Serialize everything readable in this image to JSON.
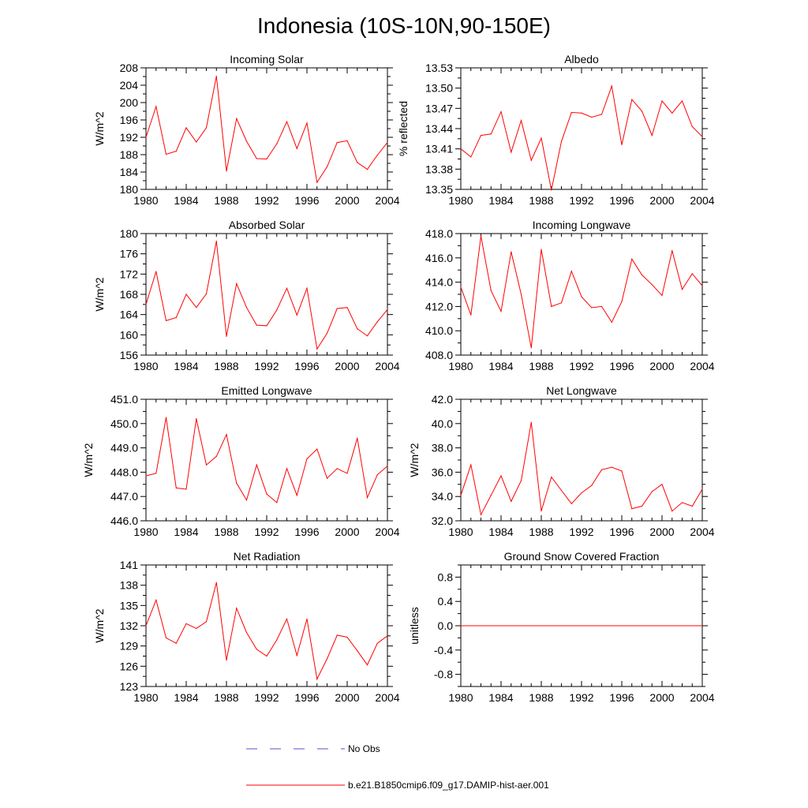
{
  "title": "Indonesia (10S-10N,90-150E)",
  "series_color": "#ff0000",
  "obs_color": "#4f4fd0",
  "legend": {
    "obs_label": "No Obs",
    "model_label": "b.e21.B1850cmip6.f09_g17.DAMIP-hist-aer.001"
  },
  "chart_data": [
    {
      "type": "line",
      "title": "Incoming Solar",
      "ylabel": "W/m^2",
      "xlim": [
        1980,
        2004
      ],
      "ylim": [
        180,
        208
      ],
      "xticks": [
        "1980",
        "1984",
        "1988",
        "1992",
        "1996",
        "2000",
        "2004"
      ],
      "yticks": [
        "180",
        "184",
        "188",
        "192",
        "196",
        "200",
        "204",
        "208"
      ],
      "x": [
        1980,
        1981,
        1982,
        1983,
        1984,
        1985,
        1986,
        1987,
        1988,
        1989,
        1990,
        1991,
        1992,
        1993,
        1994,
        1995,
        1996,
        1997,
        1998,
        1999,
        2000,
        2001,
        2002,
        2003,
        2004
      ],
      "values": [
        192.0,
        199.1,
        188.1,
        188.8,
        194.2,
        190.9,
        194.2,
        206.1,
        184.2,
        196.3,
        191.1,
        187.1,
        187.0,
        190.5,
        195.6,
        189.4,
        195.3,
        181.6,
        185.2,
        190.8,
        191.2,
        186.2,
        184.6,
        187.9,
        190.8
      ]
    },
    {
      "type": "line",
      "title": "Albedo",
      "ylabel": "% reflected",
      "xlim": [
        1980,
        2004
      ],
      "ylim": [
        13.35,
        13.53
      ],
      "xticks": [
        "1980",
        "1984",
        "1988",
        "1992",
        "1996",
        "2000",
        "2004"
      ],
      "yticks": [
        "13.35",
        "13.38",
        "13.41",
        "13.44",
        "13.47",
        "13.50",
        "13.53"
      ],
      "x": [
        1980,
        1981,
        1982,
        1983,
        1984,
        1985,
        1986,
        1987,
        1988,
        1989,
        1990,
        1991,
        1992,
        1993,
        1994,
        1995,
        1996,
        1997,
        1998,
        1999,
        2000,
        2001,
        2002,
        2003,
        2004
      ],
      "values": [
        13.41,
        13.398,
        13.43,
        13.432,
        13.465,
        13.405,
        13.452,
        13.393,
        13.426,
        13.349,
        13.421,
        13.464,
        13.463,
        13.457,
        13.461,
        13.503,
        13.416,
        13.483,
        13.466,
        13.43,
        13.481,
        13.463,
        13.481,
        13.443,
        13.428
      ]
    },
    {
      "type": "line",
      "title": "Absorbed Solar",
      "ylabel": "W/m^2",
      "xlim": [
        1980,
        2004
      ],
      "ylim": [
        156,
        180
      ],
      "xticks": [
        "1980",
        "1984",
        "1988",
        "1992",
        "1996",
        "2000",
        "2004"
      ],
      "yticks": [
        "156",
        "160",
        "164",
        "168",
        "172",
        "176",
        "180"
      ],
      "x": [
        1980,
        1981,
        1982,
        1983,
        1984,
        1985,
        1986,
        1987,
        1988,
        1989,
        1990,
        1991,
        1992,
        1993,
        1994,
        1995,
        1996,
        1997,
        1998,
        1999,
        2000,
        2001,
        2002,
        2003,
        2004
      ],
      "values": [
        166.0,
        172.5,
        162.8,
        163.4,
        168.0,
        165.4,
        168.1,
        178.5,
        159.7,
        170.1,
        165.4,
        161.9,
        161.8,
        164.9,
        169.2,
        163.9,
        169.2,
        157.2,
        160.3,
        165.2,
        165.4,
        161.2,
        159.8,
        162.6,
        165.0
      ]
    },
    {
      "type": "line",
      "title": "Incoming Longwave",
      "ylabel": "",
      "xlim": [
        1980,
        2004
      ],
      "ylim": [
        408.0,
        418.0
      ],
      "xticks": [
        "1980",
        "1984",
        "1988",
        "1992",
        "1996",
        "2000",
        "2004"
      ],
      "yticks": [
        "408.0",
        "410.0",
        "412.0",
        "414.0",
        "416.0",
        "418.0"
      ],
      "x": [
        1980,
        1981,
        1982,
        1983,
        1984,
        1985,
        1986,
        1987,
        1988,
        1989,
        1990,
        1991,
        1992,
        1993,
        1994,
        1995,
        1996,
        1997,
        1998,
        1999,
        2000,
        2001,
        2002,
        2003,
        2004
      ],
      "values": [
        413.6,
        411.3,
        417.8,
        413.3,
        411.6,
        416.5,
        413.0,
        408.6,
        416.7,
        412.0,
        412.3,
        414.9,
        412.8,
        411.9,
        412.0,
        410.7,
        412.4,
        415.9,
        414.6,
        413.8,
        412.9,
        416.6,
        413.4,
        414.7,
        413.7
      ]
    },
    {
      "type": "line",
      "title": "Emitted Longwave",
      "ylabel": "W/m^2",
      "xlim": [
        1980,
        2004
      ],
      "ylim": [
        446.0,
        451.0
      ],
      "xticks": [
        "1980",
        "1984",
        "1988",
        "1992",
        "1996",
        "2000",
        "2004"
      ],
      "yticks": [
        "446.0",
        "447.0",
        "448.0",
        "449.0",
        "450.0",
        "451.0"
      ],
      "x": [
        1980,
        1981,
        1982,
        1983,
        1984,
        1985,
        1986,
        1987,
        1988,
        1989,
        1990,
        1991,
        1992,
        1993,
        1994,
        1995,
        1996,
        1997,
        1998,
        1999,
        2000,
        2001,
        2002,
        2003,
        2004
      ],
      "values": [
        447.85,
        447.95,
        450.25,
        447.35,
        447.3,
        450.2,
        448.3,
        448.65,
        449.55,
        447.55,
        446.85,
        448.3,
        447.1,
        446.75,
        448.15,
        447.05,
        448.55,
        448.95,
        447.75,
        448.15,
        447.95,
        449.4,
        446.95,
        447.9,
        448.25
      ]
    },
    {
      "type": "line",
      "title": "Net Longwave",
      "ylabel": "W/m^2",
      "xlim": [
        1980,
        2004
      ],
      "ylim": [
        32.0,
        42.0
      ],
      "xticks": [
        "1980",
        "1984",
        "1988",
        "1992",
        "1996",
        "2000",
        "2004"
      ],
      "yticks": [
        "32.0",
        "34.0",
        "36.0",
        "38.0",
        "40.0",
        "42.0"
      ],
      "x": [
        1980,
        1981,
        1982,
        1983,
        1984,
        1985,
        1986,
        1987,
        1988,
        1989,
        1990,
        1991,
        1992,
        1993,
        1994,
        1995,
        1996,
        1997,
        1998,
        1999,
        2000,
        2001,
        2002,
        2003,
        2004
      ],
      "values": [
        34.1,
        36.6,
        32.5,
        34.1,
        35.7,
        33.6,
        35.3,
        40.1,
        32.8,
        35.6,
        34.5,
        33.4,
        34.3,
        34.9,
        36.2,
        36.4,
        36.1,
        33.0,
        33.2,
        34.4,
        35.0,
        32.8,
        33.5,
        33.2,
        34.6
      ]
    },
    {
      "type": "line",
      "title": "Net Radiation",
      "ylabel": "W/m^2",
      "xlim": [
        1980,
        2004
      ],
      "ylim": [
        123,
        141
      ],
      "xticks": [
        "1980",
        "1984",
        "1988",
        "1992",
        "1996",
        "2000",
        "2004"
      ],
      "yticks": [
        "123",
        "126",
        "129",
        "132",
        "135",
        "138",
        "141"
      ],
      "x": [
        1980,
        1981,
        1982,
        1983,
        1984,
        1985,
        1986,
        1987,
        1988,
        1989,
        1990,
        1991,
        1992,
        1993,
        1994,
        1995,
        1996,
        1997,
        1998,
        1999,
        2000,
        2001,
        2002,
        2003,
        2004
      ],
      "values": [
        132.0,
        135.8,
        130.2,
        129.4,
        132.3,
        131.6,
        132.6,
        138.4,
        126.9,
        134.6,
        131.0,
        128.5,
        127.5,
        129.9,
        133.0,
        127.6,
        133.0,
        124.1,
        127.1,
        130.6,
        130.3,
        128.3,
        126.2,
        129.4,
        130.5
      ]
    },
    {
      "type": "line",
      "title": "Ground Snow Covered Fraction",
      "ylabel": "unitless",
      "xlim": [
        1980,
        2004
      ],
      "ylim": [
        -1.0,
        1.0
      ],
      "xticks": [
        "1980",
        "1984",
        "1988",
        "1992",
        "1996",
        "2000",
        "2004"
      ],
      "yticks": [
        "-0.8",
        "-0.4",
        "0.0",
        "0.4",
        "0.8"
      ],
      "yticks_values": [
        -0.8,
        -0.4,
        0.0,
        0.4,
        0.8
      ],
      "x": [
        1980,
        2004
      ],
      "values": [
        0.0,
        0.0
      ]
    }
  ]
}
